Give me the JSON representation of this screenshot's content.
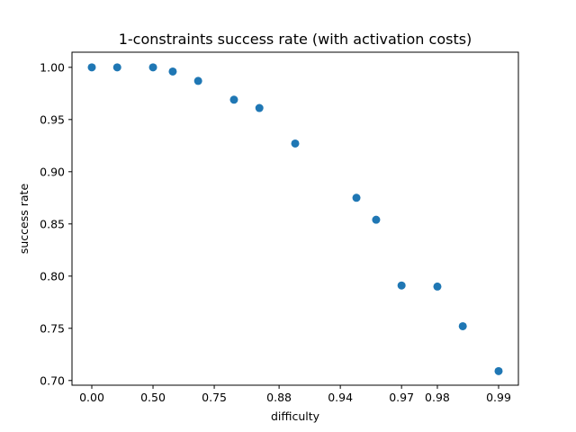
{
  "chart_data": {
    "type": "scatter",
    "title": "1-constraints success rate (with activation costs)",
    "xlabel": "difficulty",
    "ylabel": "success rate",
    "x_ticks": [
      "0.00",
      "0.50",
      "0.75",
      "0.88",
      "0.94",
      "0.97",
      "0.98",
      "0.99"
    ],
    "y_ticks": [
      "0.70",
      "0.75",
      "0.80",
      "0.85",
      "0.90",
      "0.95",
      "1.00"
    ],
    "ylim": [
      0.6955,
      1.0145
    ],
    "x_scale": "log(1 - x)",
    "x": [
      0.0,
      0.25,
      0.5,
      0.6,
      0.7,
      0.8,
      0.85,
      0.9,
      0.95,
      0.96,
      0.97,
      0.98,
      0.985,
      0.99
    ],
    "y": [
      1.0,
      1.0,
      1.0,
      0.996,
      0.987,
      0.969,
      0.961,
      0.927,
      0.875,
      0.854,
      0.791,
      0.79,
      0.752,
      0.709
    ],
    "marker_color": "#1f77b4",
    "grid": false,
    "legend": "none"
  }
}
